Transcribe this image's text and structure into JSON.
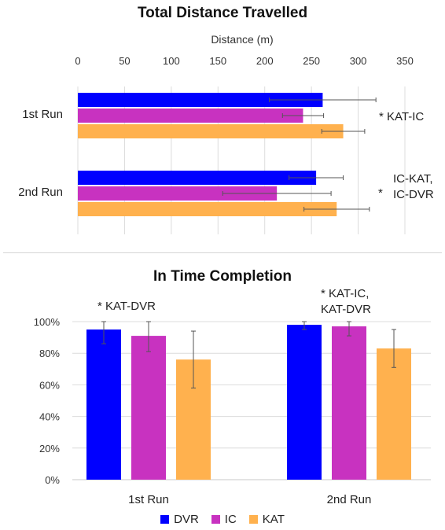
{
  "chart_data": [
    {
      "type": "bar",
      "orientation": "horizontal",
      "title": "Total Distance Travelled",
      "xlabel": "Distance (m)",
      "xlim": [
        0,
        350
      ],
      "xticks": [
        "0",
        "50",
        "100",
        "150",
        "200",
        "250",
        "300",
        "350"
      ],
      "categories": [
        "1st Run",
        "2nd Run"
      ],
      "series": [
        {
          "name": "DVR",
          "color": "#0000ff",
          "values": [
            262,
            255
          ],
          "error": [
            57,
            29
          ]
        },
        {
          "name": "IC",
          "color": "#c832c0",
          "values": [
            241,
            213
          ],
          "error": [
            22,
            58
          ]
        },
        {
          "name": "KAT",
          "color": "#ffb14e",
          "values": [
            284,
            277
          ],
          "error": [
            23,
            35
          ]
        }
      ],
      "annotations": [
        "* KAT-IC",
        "IC-KAT,\nIC-DVR",
        "*"
      ],
      "grid": "vertical"
    },
    {
      "type": "bar",
      "title": "In Time Completion",
      "ylim": [
        0,
        100
      ],
      "yticks": [
        "0%",
        "20%",
        "40%",
        "60%",
        "80%",
        "100%"
      ],
      "categories": [
        "1st Run",
        "2nd Run"
      ],
      "series": [
        {
          "name": "DVR",
          "color": "#0000ff",
          "values": [
            95,
            98
          ],
          "error": [
            9,
            3
          ]
        },
        {
          "name": "IC",
          "color": "#c832c0",
          "values": [
            91,
            97
          ],
          "error": [
            10,
            6
          ]
        },
        {
          "name": "KAT",
          "color": "#ffb14e",
          "values": [
            76,
            83
          ],
          "error": [
            18,
            12
          ]
        }
      ],
      "annotations": [
        "* KAT-DVR",
        "* KAT-IC,\nKAT-DVR"
      ],
      "grid": "horizontal",
      "legend": "bottom"
    }
  ]
}
